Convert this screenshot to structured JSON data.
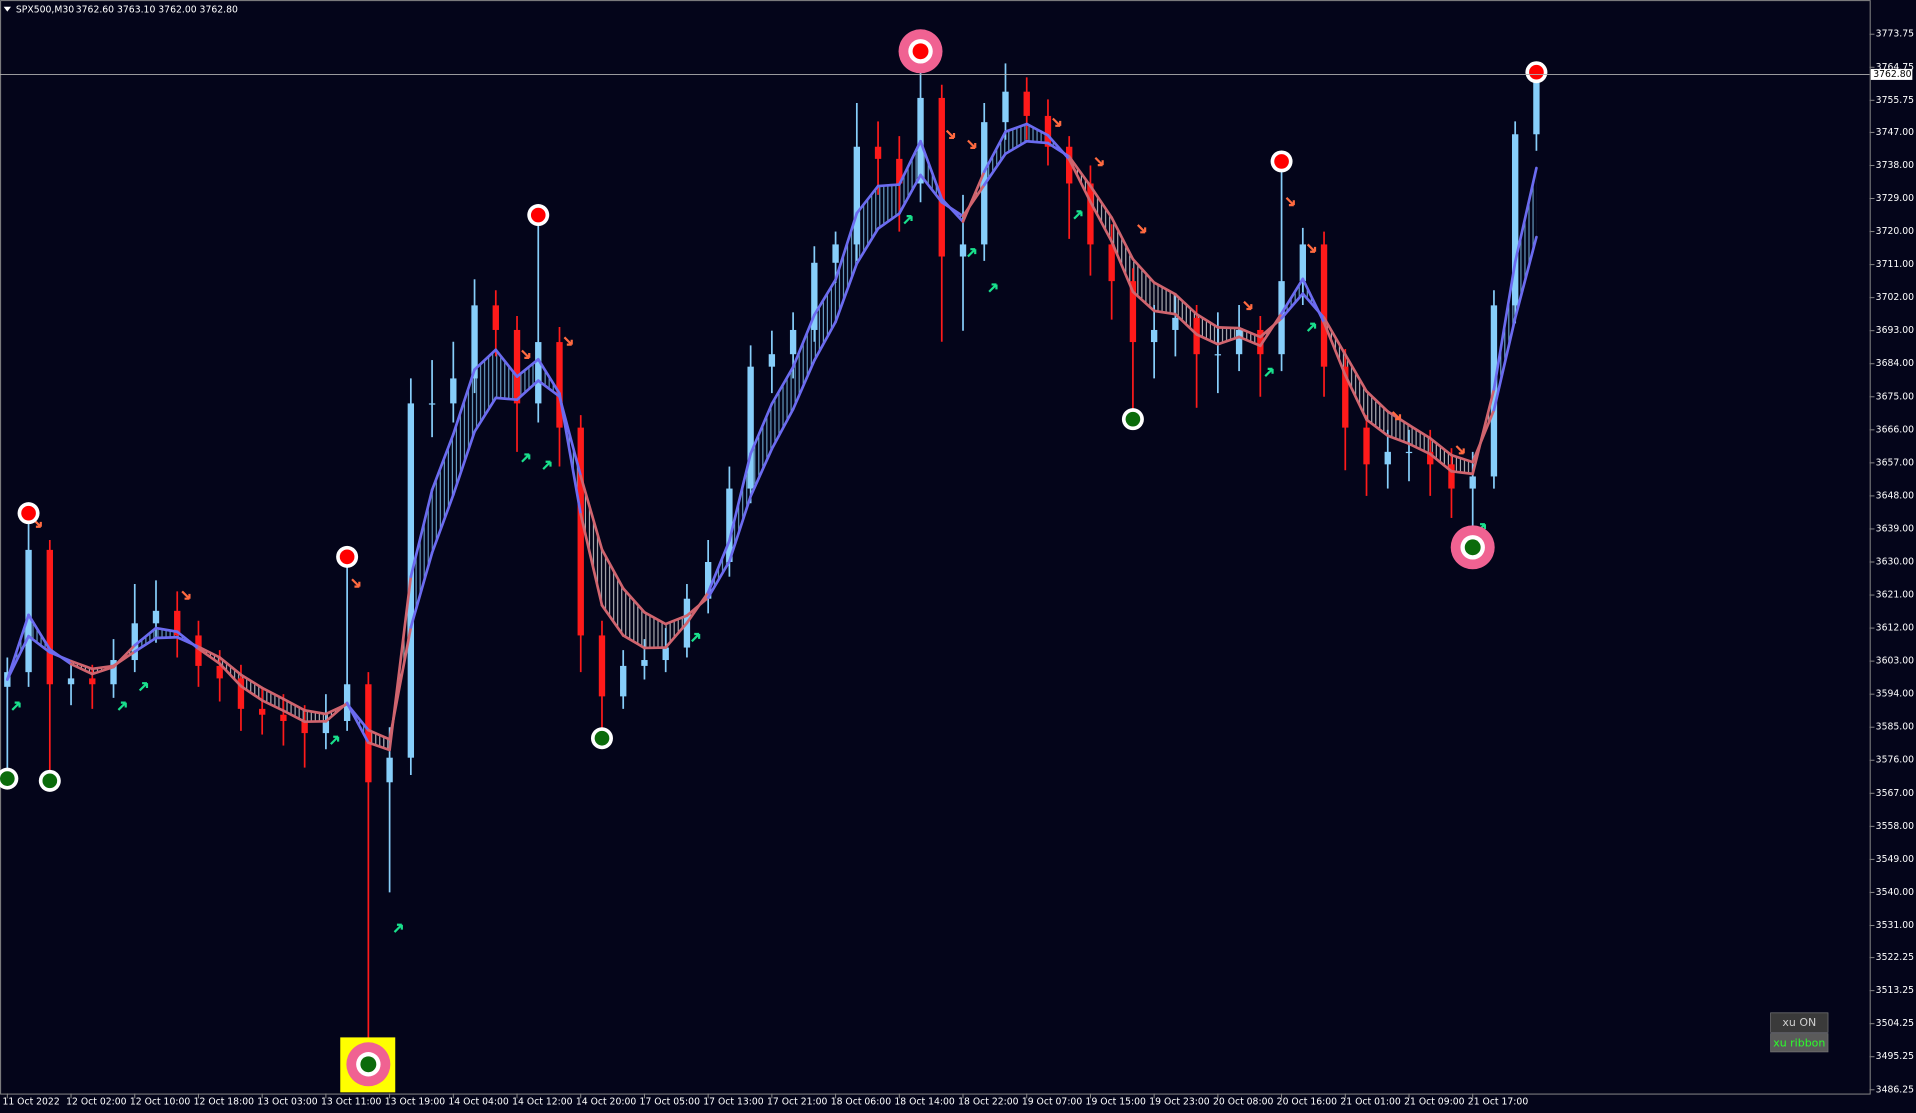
{
  "chart_data": {
    "type": "candlestick",
    "symbol": "SPX500,M30",
    "quote": "3762.60 3763.10 3762.00 3762.80",
    "categories": [
      "11 Oct 2022",
      null,
      null,
      "12 Oct 02:00",
      null,
      null,
      "12 Oct 10:00",
      null,
      null,
      "12 Oct 18:00",
      null,
      null,
      "13 Oct 03:00",
      null,
      null,
      "13 Oct 11:00",
      null,
      null,
      "13 Oct 19:00",
      null,
      null,
      "14 Oct 04:00",
      null,
      null,
      "14 Oct 12:00",
      null,
      null,
      "14 Oct 20:00",
      null,
      null,
      "17 Oct 05:00",
      null,
      null,
      "17 Oct 13:00",
      null,
      null,
      "17 Oct 21:00",
      null,
      null,
      "18 Oct 06:00",
      null,
      null,
      "18 Oct 14:00",
      null,
      null,
      "18 Oct 22:00",
      null,
      null,
      "19 Oct 07:00",
      null,
      null,
      "19 Oct 15:00",
      null,
      null,
      "19 Oct 23:00",
      null,
      null,
      "20 Oct 08:00",
      null,
      null,
      "20 Oct 16:00",
      null,
      null,
      "21 Oct 01:00",
      null,
      null,
      "21 Oct 09:00",
      null,
      null,
      "21 Oct 17:00",
      null,
      null,
      null
    ],
    "open": [
      3596.0,
      3600.0,
      3633.3,
      3596.7,
      3598.3,
      3596.7,
      3603.3,
      3613.3,
      3616.7,
      3610.0,
      3601.7,
      3598.3,
      3590.0,
      3588.4,
      3586.7,
      3583.4,
      3586.7,
      3596.7,
      3570.0,
      3576.7,
      3673.2,
      3673.2,
      3680.0,
      3699.9,
      3693.2,
      3673.2,
      3689.9,
      3666.6,
      3610.0,
      3593.4,
      3601.7,
      3603.3,
      3606.7,
      3620.0,
      3630.0,
      3650.0,
      3683.2,
      3686.6,
      3693.2,
      3711.5,
      3716.5,
      3743.1,
      3739.8,
      3733.1,
      3756.4,
      3713.2,
      3716.5,
      3749.8,
      3758.1,
      3751.5,
      3743.1,
      3733.1,
      3716.5,
      3706.5,
      3689.9,
      3693.2,
      3696.5,
      3686.6,
      3686.6,
      3693.2,
      3686.6,
      3706.5,
      3716.5,
      3683.2,
      3666.6,
      3656.6,
      3660.0,
      3660.0,
      3656.6,
      3650.0,
      3653.3,
      3699.9,
      3746.5
    ],
    "high": [
      3604,
      3643.3,
      3636,
      3602,
      3602,
      3609,
      3624,
      3625,
      3622,
      3614,
      3606,
      3602,
      3596,
      3594,
      3591,
      3594,
      3631.7,
      3600,
      3585,
      3680,
      3685,
      3690,
      3707,
      3704,
      3697,
      3724.8,
      3694,
      3670,
      3614,
      3606,
      3609,
      3612,
      3624,
      3636,
      3656,
      3689,
      3693,
      3698,
      3716,
      3720,
      3755,
      3750,
      3746,
      3769.8,
      3760,
      3730,
      3755,
      3765.8,
      3762,
      3756,
      3746,
      3738,
      3722,
      3710,
      3700,
      3703,
      3700,
      3698,
      3700,
      3697,
      3739.8,
      3721,
      3720,
      3688,
      3670,
      3666,
      3666,
      3666,
      3661,
      3660,
      3704,
      3750,
      3766
    ],
    "low": [
      3570.0,
      3596,
      3570,
      3591,
      3590,
      3593,
      3600,
      3608,
      3604,
      3596,
      3592,
      3584,
      3583,
      3580,
      3574,
      3579,
      3584,
      3490.2,
      3540,
      3572,
      3664,
      3668,
      3676,
      3686,
      3660,
      3668,
      3656,
      3600,
      3583.4,
      3590,
      3598,
      3600,
      3604,
      3616,
      3626,
      3646,
      3676,
      3680,
      3690,
      3706,
      3712,
      3730,
      3720,
      3728,
      3690,
      3693,
      3712,
      3745,
      3745,
      3738,
      3718,
      3708,
      3696,
      3668.3,
      3680,
      3686,
      3672,
      3676,
      3682,
      3675,
      3682,
      3700,
      3675,
      3655,
      3648,
      3650,
      3652,
      3648,
      3642,
      3635.0,
      3650,
      3695,
      3742
    ],
    "close": [
      3600.0,
      3633.3,
      3596.7,
      3598.3,
      3596.7,
      3603.3,
      3613.3,
      3616.7,
      3610.0,
      3601.7,
      3598.3,
      3590.0,
      3588.4,
      3586.7,
      3583.4,
      3586.7,
      3596.7,
      3570.0,
      3576.7,
      3673.2,
      3673.2,
      3680.0,
      3699.9,
      3693.2,
      3673.2,
      3689.9,
      3666.6,
      3610.0,
      3593.4,
      3601.7,
      3603.3,
      3606.7,
      3620.0,
      3630.0,
      3650.0,
      3683.2,
      3686.6,
      3693.2,
      3711.5,
      3716.5,
      3743.1,
      3739.8,
      3733.1,
      3756.4,
      3713.2,
      3716.5,
      3749.8,
      3758.1,
      3751.5,
      3743.1,
      3733.1,
      3716.5,
      3706.5,
      3689.9,
      3693.2,
      3696.5,
      3686.6,
      3686.6,
      3693.2,
      3686.6,
      3706.5,
      3716.5,
      3683.2,
      3666.6,
      3656.6,
      3660.0,
      3660.0,
      3656.6,
      3650.0,
      3653.3,
      3699.9,
      3746.5,
      3762.8
    ],
    "ma_fast": [
      3598.0,
      3615.6,
      3606.2,
      3602.2,
      3599.5,
      3601.4,
      3607.3,
      3612.0,
      3611.0,
      3606.4,
      3602.3,
      3596.2,
      3592.3,
      3589.5,
      3586.5,
      3586.6,
      3591.6,
      3580.8,
      3578.8,
      3626.0,
      3649.6,
      3664.8,
      3682.4,
      3687.8,
      3680.5,
      3685.2,
      3675.9,
      3643.0,
      3618.2,
      3610.0,
      3606.6,
      3606.7,
      3613.4,
      3621.7,
      3635.8,
      3659.5,
      3673.1,
      3683.1,
      3697.3,
      3706.9,
      3725.0,
      3732.4,
      3732.8,
      3744.6,
      3728.9,
      3722.7,
      3736.3,
      3747.2,
      3749.3,
      3746.2,
      3739.7,
      3728.1,
      3717.3,
      3703.6,
      3698.4,
      3697.5,
      3692.0,
      3689.3,
      3691.3,
      3688.9,
      3697.7,
      3707.1,
      3695.2,
      3680.9,
      3668.8,
      3664.4,
      3662.2,
      3659.4,
      3654.7,
      3654.0,
      3677.0,
      3711.7,
      3737.3
    ],
    "ma_slow": [
      3598.0,
      3609.8,
      3605.4,
      3603.0,
      3600.9,
      3601.7,
      3605.6,
      3609.3,
      3609.5,
      3606.9,
      3604.0,
      3599.3,
      3595.7,
      3592.7,
      3589.6,
      3588.6,
      3591.3,
      3584.2,
      3581.7,
      3612.2,
      3632.5,
      3648.3,
      3665.5,
      3674.7,
      3674.2,
      3679.4,
      3675.1,
      3653.4,
      3633.4,
      3622.8,
      3616.3,
      3613.1,
      3615.4,
      3620.3,
      3630.2,
      3647.9,
      3660.8,
      3671.6,
      3684.9,
      3695.4,
      3711.3,
      3720.8,
      3724.9,
      3735.4,
      3728.0,
      3724.2,
      3732.7,
      3741.2,
      3744.6,
      3744.1,
      3740.4,
      3732.4,
      3723.8,
      3712.5,
      3706.1,
      3702.9,
      3697.5,
      3693.9,
      3693.7,
      3691.3,
      3696.4,
      3703.1,
      3696.5,
      3686.5,
      3676.5,
      3671.0,
      3667.3,
      3663.7,
      3659.1,
      3657.2,
      3671.4,
      3696.4,
      3718.5
    ],
    "arrows_down": [
      null,
      3640.6,
      null,
      null,
      null,
      null,
      null,
      null,
      3621.0,
      null,
      null,
      null,
      null,
      null,
      null,
      null,
      3624.3,
      null,
      null,
      null,
      null,
      null,
      null,
      null,
      3686.6,
      null,
      3690.2,
      null,
      null,
      null,
      null,
      null,
      null,
      null,
      null,
      null,
      null,
      null,
      null,
      null,
      null,
      null,
      null,
      null,
      3746.5,
      3743.8,
      null,
      null,
      null,
      3749.8,
      null,
      3739.1,
      null,
      3720.8,
      null,
      null,
      null,
      null,
      3699.9,
      null,
      3728.2,
      3715.5,
      null,
      null,
      null,
      3669.9,
      null,
      null,
      3660.6,
      null,
      null,
      null,
      null
    ],
    "arrows_up": [
      3590.7,
      null,
      null,
      null,
      null,
      3590.7,
      3596.0,
      null,
      null,
      null,
      null,
      null,
      null,
      null,
      null,
      3581.4,
      null,
      null,
      3530.2,
      null,
      null,
      null,
      null,
      null,
      3658.3,
      3656.3,
      null,
      null,
      null,
      null,
      null,
      null,
      3609.4,
      null,
      null,
      null,
      null,
      null,
      null,
      null,
      null,
      null,
      3723.2,
      null,
      null,
      3714.2,
      3704.6,
      null,
      null,
      null,
      3724.5,
      null,
      null,
      null,
      null,
      null,
      null,
      null,
      null,
      3681.6,
      null,
      3693.9,
      null,
      null,
      null,
      null,
      null,
      null,
      null,
      3639.3,
      null,
      null,
      null
    ],
    "sell_signals": [
      null,
      3643.3,
      null,
      null,
      null,
      null,
      null,
      null,
      null,
      null,
      null,
      null,
      null,
      null,
      null,
      null,
      3631.4,
      null,
      null,
      null,
      null,
      null,
      null,
      null,
      null,
      3724.5,
      null,
      null,
      null,
      null,
      null,
      null,
      null,
      null,
      null,
      null,
      null,
      null,
      null,
      null,
      null,
      null,
      null,
      null,
      null,
      null,
      null,
      null,
      null,
      null,
      null,
      null,
      null,
      null,
      null,
      null,
      null,
      null,
      null,
      null,
      3739.1,
      null,
      null,
      null,
      null,
      null,
      null,
      null,
      null,
      null,
      null,
      null,
      3763.4
    ],
    "strong_sell_signals": [
      null,
      null,
      null,
      null,
      null,
      null,
      null,
      null,
      null,
      null,
      null,
      null,
      null,
      null,
      null,
      null,
      null,
      null,
      null,
      null,
      null,
      null,
      null,
      null,
      null,
      null,
      null,
      null,
      null,
      null,
      null,
      null,
      null,
      null,
      null,
      null,
      null,
      null,
      null,
      null,
      null,
      null,
      null,
      3769.1,
      null,
      null,
      null,
      null,
      null,
      null,
      null,
      null,
      null,
      null,
      null,
      null,
      null,
      null,
      null,
      null,
      null,
      null,
      null,
      null,
      null,
      null,
      null,
      null,
      null,
      null,
      null,
      null,
      null
    ],
    "buy_signals": [
      3571.0,
      null,
      3570.4,
      null,
      null,
      null,
      null,
      null,
      null,
      null,
      null,
      null,
      null,
      null,
      null,
      null,
      null,
      null,
      null,
      null,
      null,
      null,
      null,
      null,
      null,
      null,
      null,
      null,
      3582.0,
      null,
      null,
      null,
      null,
      null,
      null,
      null,
      null,
      null,
      null,
      null,
      null,
      null,
      null,
      null,
      null,
      null,
      null,
      null,
      null,
      null,
      null,
      null,
      null,
      3668.9,
      null,
      null,
      null,
      null,
      null,
      null,
      null,
      null,
      null,
      null,
      null,
      null,
      null,
      null,
      null,
      null,
      null,
      null,
      null
    ],
    "strong_buy_signals": [
      null,
      null,
      null,
      null,
      null,
      null,
      null,
      null,
      null,
      null,
      null,
      null,
      null,
      null,
      null,
      null,
      null,
      3493.2,
      null,
      null,
      null,
      null,
      null,
      null,
      null,
      null,
      null,
      null,
      null,
      null,
      null,
      null,
      null,
      null,
      null,
      null,
      null,
      null,
      null,
      null,
      null,
      null,
      null,
      null,
      null,
      null,
      null,
      null,
      null,
      null,
      null,
      null,
      null,
      null,
      null,
      null,
      null,
      null,
      null,
      null,
      null,
      null,
      null,
      null,
      null,
      null,
      null,
      null,
      null,
      3634.0,
      null,
      null,
      null
    ],
    "boxed_signals": [
      null,
      null,
      null,
      null,
      null,
      null,
      null,
      null,
      null,
      null,
      null,
      null,
      null,
      null,
      null,
      null,
      null,
      3493.2,
      null,
      null,
      null,
      null,
      null,
      null,
      null,
      null,
      null,
      null,
      null,
      null,
      null,
      null,
      null,
      null,
      null,
      null,
      null,
      null,
      null,
      null,
      null,
      null,
      null,
      null,
      null,
      null,
      null,
      null,
      null,
      null,
      null,
      null,
      null,
      null,
      null,
      null,
      null,
      null,
      null,
      null,
      null,
      null,
      null,
      null,
      null,
      null,
      null,
      null,
      null,
      null,
      null,
      null,
      null
    ],
    "ylim": [
      3485.25,
      3783.07
    ],
    "yticks": [
      {
        "value": 3773.75,
        "label": "3773.75"
      },
      {
        "value": 3764.75,
        "label": "3764.75"
      },
      {
        "value": 3755.75,
        "label": "3755.75"
      },
      {
        "value": 3747,
        "label": "3747.00"
      },
      {
        "value": 3738,
        "label": "3738.00"
      },
      {
        "value": 3729,
        "label": "3729.00"
      },
      {
        "value": 3720,
        "label": "3720.00"
      },
      {
        "value": 3711,
        "label": "3711.00"
      },
      {
        "value": 3702,
        "label": "3702.00"
      },
      {
        "value": 3693,
        "label": "3693.00"
      },
      {
        "value": 3684,
        "label": "3684.00"
      },
      {
        "value": 3675,
        "label": "3675.00"
      },
      {
        "value": 3666,
        "label": "3666.00"
      },
      {
        "value": 3657,
        "label": "3657.00"
      },
      {
        "value": 3648,
        "label": "3648.00"
      },
      {
        "value": 3639,
        "label": "3639.00"
      },
      {
        "value": 3630,
        "label": "3630.00"
      },
      {
        "value": 3621,
        "label": "3621.00"
      },
      {
        "value": 3612,
        "label": "3612.00"
      },
      {
        "value": 3603,
        "label": "3603.00"
      },
      {
        "value": 3594,
        "label": "3594.00"
      },
      {
        "value": 3585,
        "label": "3585.00"
      },
      {
        "value": 3576,
        "label": "3576.00"
      },
      {
        "value": 3567,
        "label": "3567.00"
      },
      {
        "value": 3558,
        "label": "3558.00"
      },
      {
        "value": 3549,
        "label": "3549.00"
      },
      {
        "value": 3540,
        "label": "3540.00"
      },
      {
        "value": 3531,
        "label": "3531.00"
      },
      {
        "value": 3522.25,
        "label": "3522.25"
      },
      {
        "value": 3513.25,
        "label": "3513.25"
      },
      {
        "value": 3504.25,
        "label": "3504.25"
      },
      {
        "value": 3495.25,
        "label": "3495.25"
      },
      {
        "value": 3486.25,
        "label": "3486.25"
      }
    ],
    "last_price": {
      "value": 3762.8,
      "label": "3762.80"
    },
    "colors": {
      "up": "#87cefa",
      "down": "#ff1a1a",
      "ribbon_up": "#6b6bf0",
      "ribbon_down": "#d0646e",
      "sell": "#ff0000",
      "buy": "#0b6b0b",
      "arrow_down": "#ff6a40",
      "arrow_up": "#19e08c",
      "halo": "#f06292",
      "box": "#ffff00"
    },
    "buttons": [
      "xu ON",
      "xu ribbon"
    ]
  }
}
